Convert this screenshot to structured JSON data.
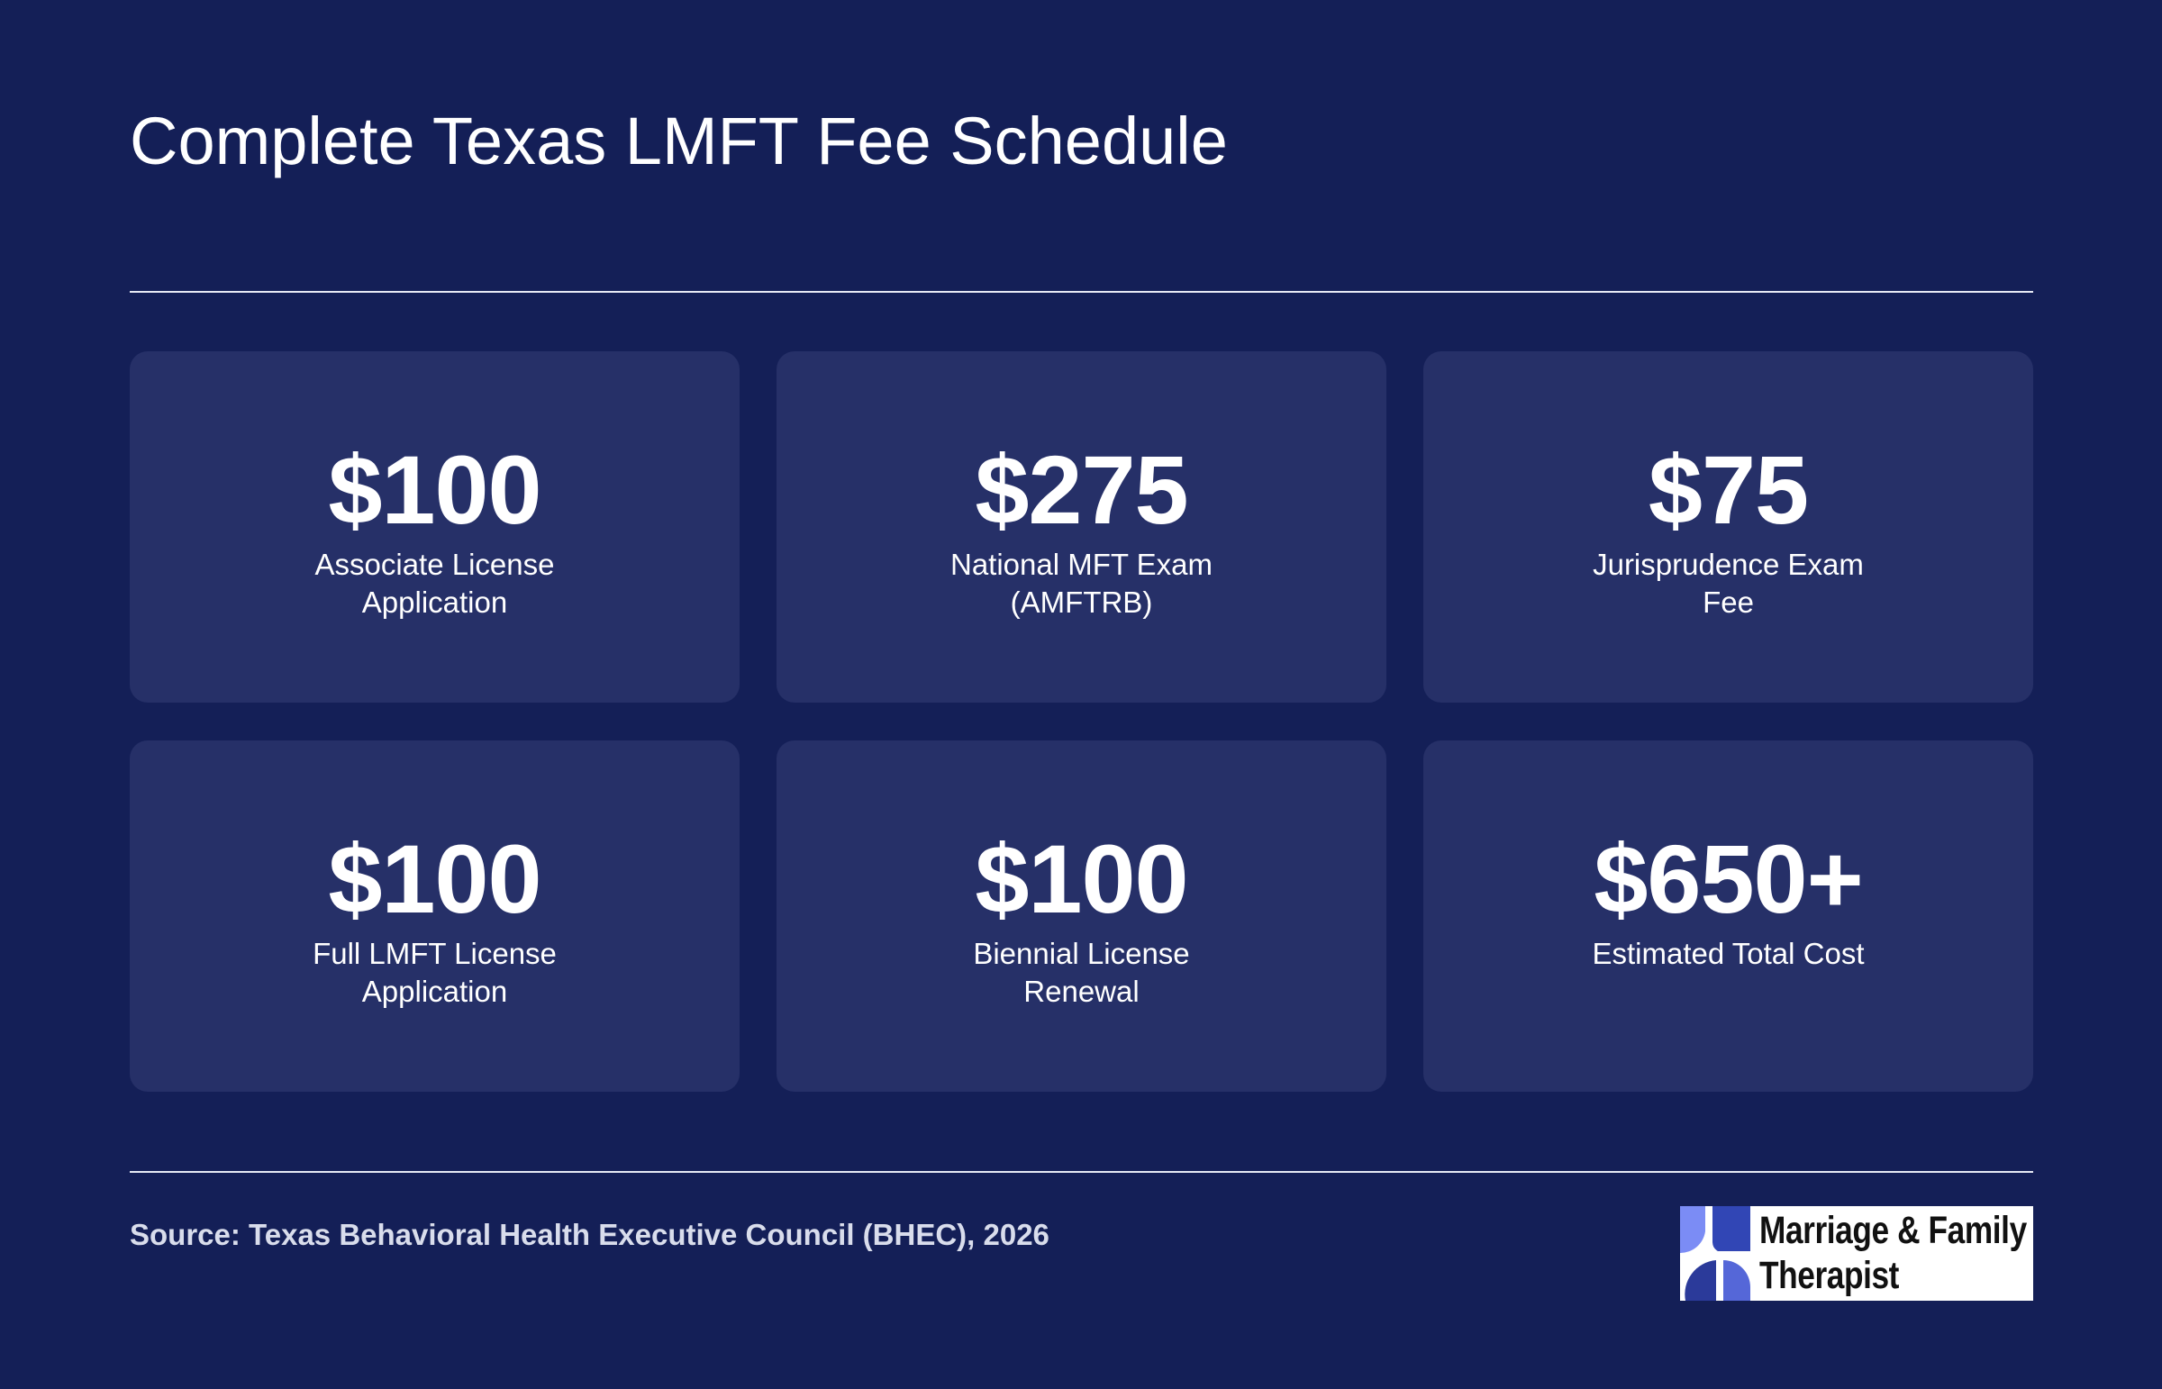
{
  "header": {
    "title": "Complete Texas LMFT Fee Schedule"
  },
  "cards": [
    {
      "amount": "$100",
      "label": "Associate License Application"
    },
    {
      "amount": "$275",
      "label": "National MFT Exam (AMFTRB)"
    },
    {
      "amount": "$75",
      "label": "Jurisprudence Exam Fee"
    },
    {
      "amount": "$100",
      "label": "Full LMFT License Application"
    },
    {
      "amount": "$100",
      "label": "Biennial License Renewal"
    },
    {
      "amount": "$650+",
      "label": "Estimated Total Cost"
    }
  ],
  "footer": {
    "source": "Source: Texas Behavioral Health Executive Council (BHEC), 2026",
    "logo_text_line1": "Marriage & Family",
    "logo_text_line2": "Therapist"
  },
  "colors": {
    "background": "#141f57",
    "card": "#263068",
    "text": "#ffffff",
    "logo_light": "#7b8cf5",
    "logo_dark": "#2b3a9a"
  }
}
